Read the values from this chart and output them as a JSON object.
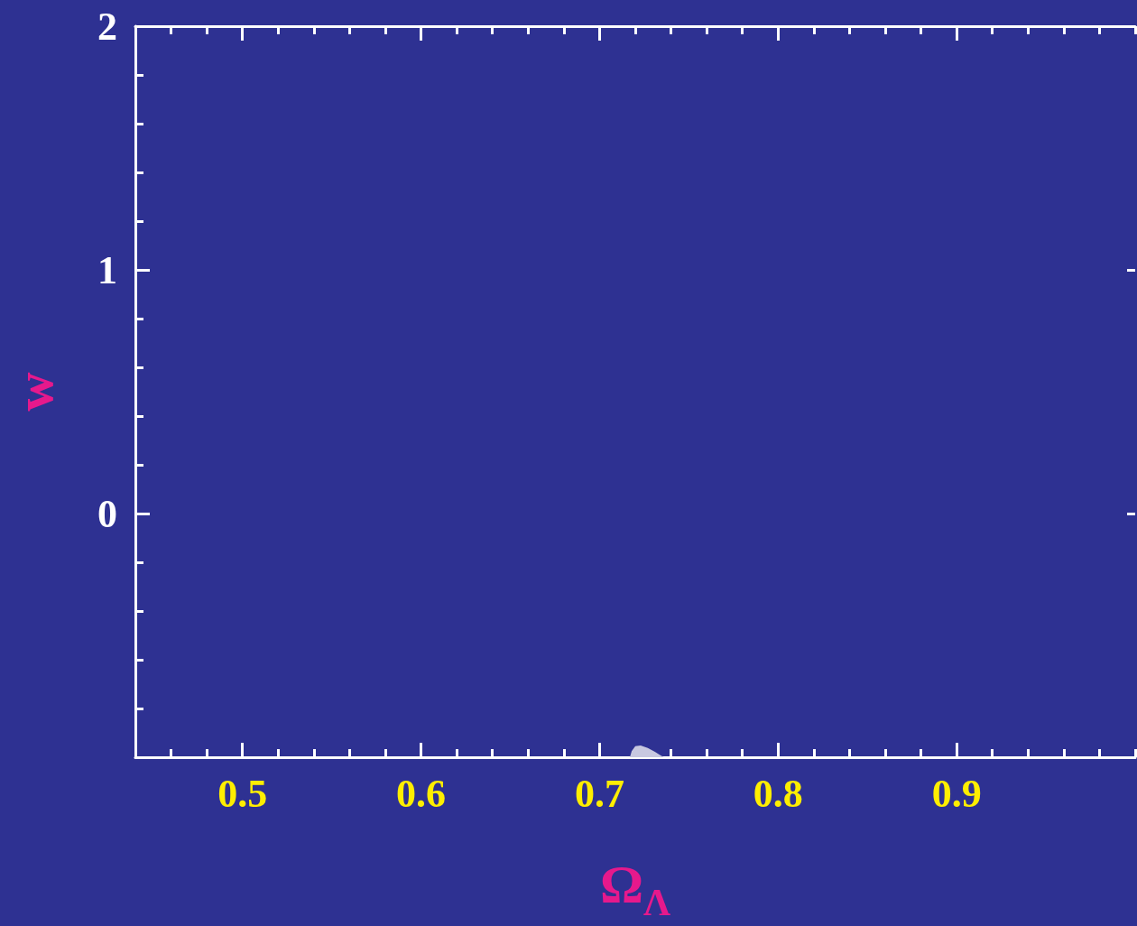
{
  "chart_data": {
    "type": "area",
    "xlabel": "Ω$_{Λ}$",
    "ylabel": "w",
    "xlim": [
      0.44,
      1.0
    ],
    "xticks": [
      0.5,
      0.6,
      0.7,
      0.8,
      0.9
    ],
    "ylim": [
      -1,
      2
    ],
    "yticks": [
      {
        "value": -1,
        "label": null
      },
      0,
      1,
      2
    ],
    "grid": false,
    "series": [
      {
        "color": "#c8c8e0",
        "x": [
          0.717,
          0.718,
          0.72,
          0.723,
          0.727,
          0.731,
          0.734,
          0.736
        ],
        "values": [
          -1,
          -0.975,
          -0.955,
          -0.952,
          -0.962,
          -0.978,
          -0.992,
          -1
        ]
      }
    ]
  }
}
